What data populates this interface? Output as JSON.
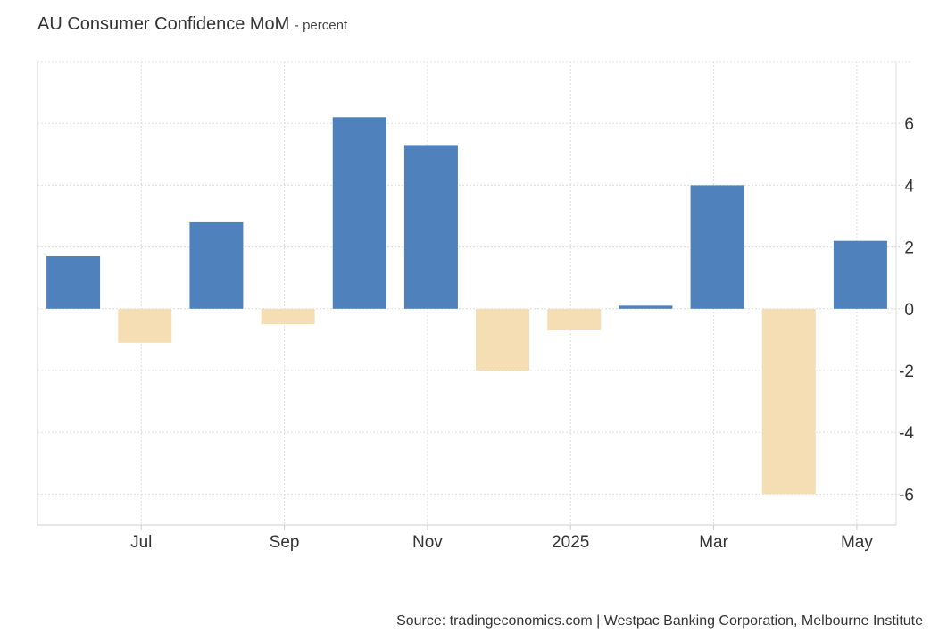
{
  "chart_data": {
    "type": "bar",
    "title": "AU Consumer Confidence MoM",
    "subtitle": "percent",
    "xlabel": "",
    "ylabel": "",
    "categories": [
      "Jun 2024",
      "Jul 2024",
      "Aug 2024",
      "Sep 2024",
      "Oct 2024",
      "Nov 2024",
      "Dec 2024",
      "Jan 2025",
      "Feb 2025",
      "Mar 2025",
      "Apr 2025",
      "May 2025"
    ],
    "values": [
      1.7,
      -1.1,
      2.8,
      -0.5,
      6.2,
      5.3,
      -2.0,
      -0.7,
      0.1,
      4.0,
      -6.0,
      2.2
    ],
    "ylim": [
      -7,
      8
    ],
    "y_ticks": [
      6,
      4,
      2,
      0,
      -2,
      -4,
      -6
    ],
    "x_tick_labels": [
      {
        "label": "Jul",
        "index": 1
      },
      {
        "label": "Sep",
        "index": 3
      },
      {
        "label": "Nov",
        "index": 5
      },
      {
        "label": "2025",
        "index": 7
      },
      {
        "label": "Mar",
        "index": 9
      },
      {
        "label": "May",
        "index": 11
      }
    ],
    "grid": true,
    "axis_side": "right",
    "colors": {
      "positive": "#4f81bd",
      "negative": "#f5deb3",
      "grid": "#dddddd",
      "axis": "#cccccc"
    }
  },
  "source": "Source: tradingeconomics.com | Westpac Banking Corporation, Melbourne Institute"
}
